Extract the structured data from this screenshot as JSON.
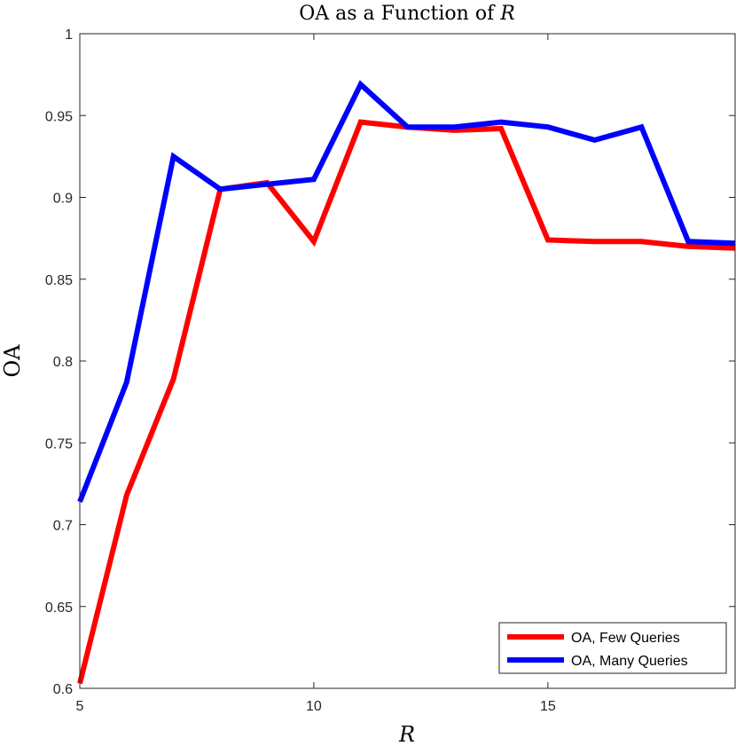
{
  "chart_data": {
    "type": "line",
    "title": "OA as a Function of R",
    "title_prefix": "OA as a Function of ",
    "title_var": "R",
    "xlabel": "R",
    "ylabel": "OA",
    "xlim": [
      5,
      19
    ],
    "ylim": [
      0.6,
      1
    ],
    "xticks": [
      5,
      10,
      15
    ],
    "xtick_labels": [
      "5",
      "10",
      "15"
    ],
    "yticks": [
      0.6,
      0.65,
      0.7,
      0.75,
      0.8,
      0.85,
      0.9,
      0.95,
      1
    ],
    "ytick_labels": [
      "0.6",
      "0.65",
      "0.7",
      "0.75",
      "0.8",
      "0.85",
      "0.9",
      "0.95",
      "1"
    ],
    "grid": false,
    "legend_position": "bottom-right",
    "x": [
      5,
      6,
      7,
      8,
      9,
      10,
      11,
      12,
      13,
      14,
      15,
      16,
      17,
      18,
      19
    ],
    "series": [
      {
        "name": "OA, Few Queries",
        "color": "#ff0000",
        "values": [
          0.603,
          0.718,
          0.789,
          0.905,
          0.909,
          0.873,
          0.946,
          0.943,
          0.941,
          0.942,
          0.874,
          0.873,
          0.873,
          0.87,
          0.869
        ]
      },
      {
        "name": "OA, Many Queries",
        "color": "#0000ff",
        "values": [
          0.714,
          0.787,
          0.925,
          0.905,
          0.908,
          0.911,
          0.969,
          0.943,
          0.943,
          0.946,
          0.943,
          0.935,
          0.943,
          0.873,
          0.872
        ]
      }
    ]
  }
}
